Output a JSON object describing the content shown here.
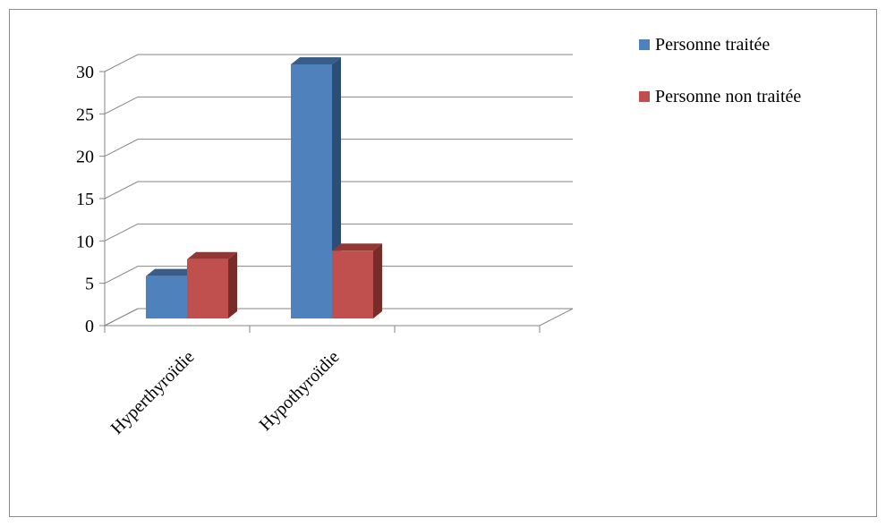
{
  "chart_data": {
    "type": "bar",
    "style": "3d-clustered-column",
    "categories": [
      "Hyperthyroïdie",
      "Hypothyroïdie",
      ""
    ],
    "series": [
      {
        "name": "Personne traitée",
        "values": [
          5,
          30,
          0
        ],
        "color": "#4f81bd",
        "top_color": "#385d8a",
        "side_color": "#2c4d75"
      },
      {
        "name": "Personne non traitée",
        "values": [
          7,
          8,
          0
        ],
        "color": "#c0504d",
        "top_color": "#943634",
        "side_color": "#772c2a"
      }
    ],
    "ylim": [
      0,
      30
    ],
    "yticks": [
      0,
      5,
      10,
      15,
      20,
      25,
      30
    ],
    "grid": true,
    "legend_position": "top-right",
    "title": "",
    "xlabel": "",
    "ylabel": ""
  }
}
